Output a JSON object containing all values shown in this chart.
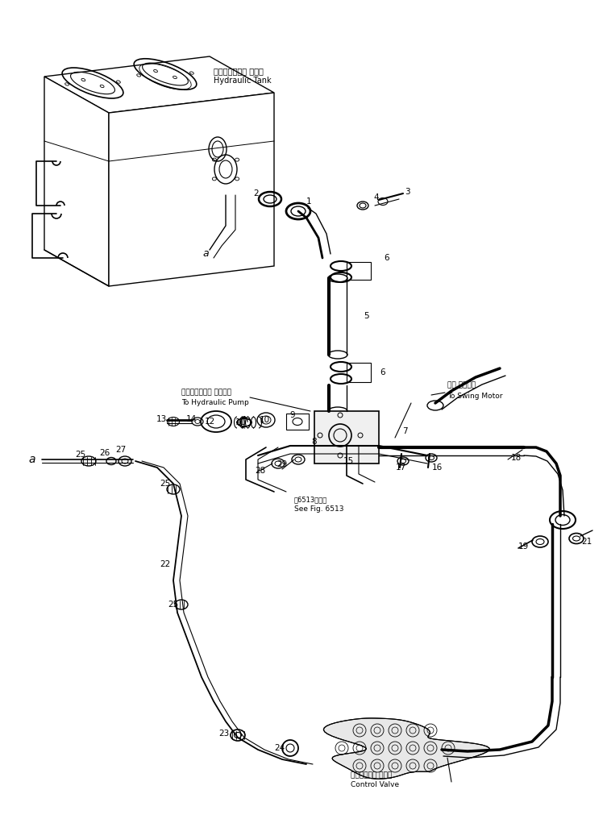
{
  "background_color": "#ffffff",
  "line_color": "#000000",
  "figure_width": 7.53,
  "figure_height": 10.16,
  "dpi": 100,
  "labels": {
    "hydraulic_tank_jp": "ハイドロリック タンク",
    "hydraulic_tank_en": "Hydraulic Tank",
    "hydraulic_pump_jp": "ハイドロリック ポンプへ",
    "hydraulic_pump_en": "To Hydraulic Pump",
    "swing_motor_jp": "旋回 モータへ",
    "swing_motor_en": "To Swing Motor",
    "see_fig_jp": "第6513図参照",
    "see_fig_en": "See Fig. 6513",
    "control_valve_jp": "コントロール バルブ",
    "control_valve_en": "Control Valve"
  }
}
